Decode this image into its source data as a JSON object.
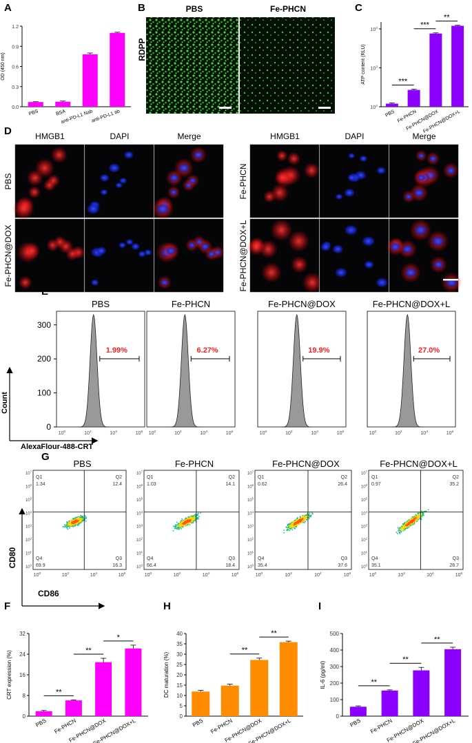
{
  "panel_letters": {
    "A": "A",
    "B": "B",
    "C": "C",
    "D": "D",
    "E": "E",
    "F": "F",
    "G": "G",
    "H": "H",
    "I": "I"
  },
  "chart_data": [
    {
      "id": "A",
      "type": "bar",
      "ylabel": "OD (450 nm)",
      "ylim": [
        0,
        1.2
      ],
      "yticks": [
        0.0,
        0.3,
        0.6,
        0.9,
        1.2
      ],
      "ytick_labels": [
        "0.0",
        "0.3",
        "0.6",
        "0.9",
        "1.2"
      ],
      "categories": [
        "PBS",
        "BSA",
        "anti-PD-L1 Nab",
        "anti-PD-L1 ab"
      ],
      "values": [
        0.07,
        0.075,
        0.78,
        1.1
      ],
      "errors": [
        0.005,
        0.01,
        0.02,
        0.01
      ],
      "color": "#ff00ff"
    },
    {
      "id": "C",
      "type": "bar",
      "ylabel": "ATP content (RLU)",
      "scale": "log",
      "ylim": [
        100,
        15000
      ],
      "yticks": [
        100,
        1000,
        10000
      ],
      "ytick_base": [
        "10",
        "10",
        "10"
      ],
      "ytick_exp": [
        "2",
        "3",
        "4"
      ],
      "categories": [
        "PBS",
        "Fe-PHCN",
        "Fe-PHCN@DOX",
        "Fe-PHCN@DOX+L"
      ],
      "values": [
        120,
        270,
        7600,
        12000
      ],
      "errors": [
        5,
        12,
        300,
        400
      ],
      "color": "#8b00ff",
      "significance": [
        {
          "from": 0,
          "to": 1,
          "label": "***"
        },
        {
          "from": 1,
          "to": 2,
          "label": "***"
        },
        {
          "from": 2,
          "to": 3,
          "label": "**"
        }
      ]
    },
    {
      "id": "F",
      "type": "bar",
      "ylabel": "CRT expression (%)",
      "ylim": [
        0,
        32
      ],
      "yticks": [
        0,
        8,
        16,
        24,
        32
      ],
      "ytick_labels": [
        "0",
        "8",
        "16",
        "24",
        "32"
      ],
      "categories": [
        "PBS",
        "Fe-PHCN",
        "Fe-PHCN@DOX",
        "Fe-PHCN@DOX+L"
      ],
      "values": [
        1.9,
        6.1,
        20.9,
        26.2
      ],
      "errors": [
        0.3,
        0.2,
        1.5,
        1.3
      ],
      "color": "#ff00ff",
      "significance": [
        {
          "from": 0,
          "to": 1,
          "label": "**"
        },
        {
          "from": 1,
          "to": 2,
          "label": "**"
        },
        {
          "from": 2,
          "to": 3,
          "label": "*"
        }
      ]
    },
    {
      "id": "H",
      "type": "bar",
      "ylabel": "DC maturation (%)",
      "ylim": [
        0,
        40
      ],
      "yticks": [
        0,
        5,
        10,
        15,
        20,
        25,
        30,
        35,
        40
      ],
      "ytick_labels": [
        "0",
        "5",
        "10",
        "15",
        "20",
        "25",
        "30",
        "35",
        "40"
      ],
      "categories": [
        "PBS",
        "Fe-PHCN",
        "Fe-PHCN@DOX",
        "Fe-PHCN@DOX+L"
      ],
      "values": [
        11.9,
        14.8,
        27.2,
        35.8
      ],
      "errors": [
        0.6,
        0.7,
        0.9,
        0.5
      ],
      "color": "#ff8c00",
      "significance": [
        {
          "from": 1,
          "to": 2,
          "label": "**"
        },
        {
          "from": 2,
          "to": 3,
          "label": "**"
        }
      ]
    },
    {
      "id": "I",
      "type": "bar",
      "ylabel": "IL-6 (pg/ml)",
      "ylim": [
        0,
        500
      ],
      "yticks": [
        0,
        100,
        200,
        300,
        400,
        500
      ],
      "ytick_labels": [
        "0",
        "100",
        "200",
        "300",
        "400",
        "500"
      ],
      "categories": [
        "PBS",
        "Fe-PHCN",
        "Fe-PHCN@DOX",
        "Fe-PHCN@DOX+L"
      ],
      "values": [
        57,
        155,
        277,
        405
      ],
      "errors": [
        5,
        4,
        18,
        12
      ],
      "color": "#8b00ff",
      "significance": [
        {
          "from": 0,
          "to": 1,
          "label": "**"
        },
        {
          "from": 1,
          "to": 2,
          "label": "**"
        },
        {
          "from": 2,
          "to": 3,
          "label": "**"
        }
      ]
    }
  ],
  "panel_b": {
    "row_label": "RDPP",
    "columns": [
      "PBS",
      "Fe-PHCN"
    ]
  },
  "panel_d": {
    "channels": [
      "HMGB1",
      "DAPI",
      "Merge"
    ],
    "groups": [
      "PBS",
      "Fe-PHCN@DOX",
      "Fe-PHCN",
      "Fe-PHCN@DOX+L"
    ]
  },
  "panel_e": {
    "titles": [
      "PBS",
      "Fe-PHCN",
      "Fe-PHCN@DOX",
      "Fe-PHCN@DOX+L"
    ],
    "gates": [
      "1.99%",
      "6.27%",
      "19.9%",
      "27.0%"
    ],
    "ylabel": "Count",
    "xlabel": "AlexaFlour-488-CRT",
    "yticks": [
      0,
      100,
      200,
      300
    ],
    "ytick_labels": [
      "0",
      "100",
      "200",
      "300"
    ],
    "xtick_base": "10",
    "xtick_exps": [
      "0",
      "2",
      "4",
      "6"
    ]
  },
  "panel_g": {
    "titles": [
      "PBS",
      "Fe-PHCN",
      "Fe-PHCN@DOX",
      "Fe-PHCN@DOX+L"
    ],
    "quadrant_names": [
      "Q1",
      "Q2",
      "Q3",
      "Q4"
    ],
    "quadrants": [
      {
        "q1": "1.34",
        "q2": "12.4",
        "q3": "16.3",
        "q4": "69.9"
      },
      {
        "q1": "1.03",
        "q2": "14.1",
        "q3": "18.4",
        "q4": "66.4"
      },
      {
        "q1": "0.62",
        "q2": "26.4",
        "q3": "37.6",
        "q4": "35.4"
      },
      {
        "q1": "0.97",
        "q2": "35.2",
        "q3": "28.7",
        "q4": "35.1"
      }
    ],
    "ylabel": "CD80",
    "xlabel": "CD86",
    "tick_base": "10",
    "tick_exps": [
      "0",
      "2",
      "4",
      "6"
    ],
    "ytick_exps": [
      "0",
      "1",
      "2",
      "3",
      "4",
      "5",
      "6",
      "7"
    ]
  },
  "colors": {
    "magenta": "#ff00ff",
    "violet": "#8b00ff",
    "orange": "#ff8c00",
    "red_text": "#ff2020"
  }
}
